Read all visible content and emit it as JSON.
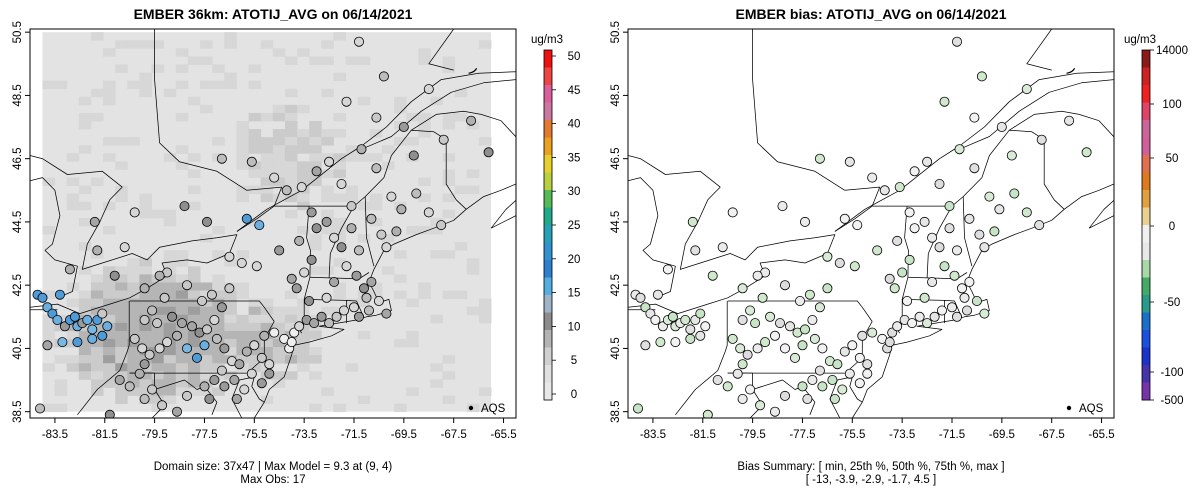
{
  "panels": [
    {
      "title": "EMBER 36km: ATOTIJ_AVG on 06/14/2021",
      "kind": "concentration",
      "legend_label": "AQS",
      "footer": [
        "Domain size: 37x47 | Max Model = 9.3 at (9, 4)",
        "Max Obs: 17"
      ],
      "colorbar": {
        "unit": "ug/m3",
        "ticks": [
          "50",
          "45",
          "40",
          "35",
          "30",
          "25",
          "20",
          "15",
          "10",
          "5",
          "0"
        ],
        "colors": [
          "#ee1111",
          "#ee4444",
          "#d9609a",
          "#cc77a0",
          "#e27a30",
          "#eaa020",
          "#e8cf30",
          "#b8d040",
          "#55bb55",
          "#22aa88",
          "#2aa0b8",
          "#3391d0",
          "#2f7fd0",
          "#55aee0",
          "#a0b4c8",
          "#8c8c8c",
          "#b4b4b4",
          "#d0d0d0",
          "#e0e0e0",
          "#e8e8e8"
        ]
      }
    },
    {
      "title": "EMBER bias: ATOTIJ_AVG on 06/14/2021",
      "kind": "bias",
      "legend_label": "AQS",
      "footer": [
        "Bias Summary: [ min, 25th %, 50th %, 75th %, max ]",
        "[ -13,   -3.9,   -2.9,   -1.7,   4.5 ]"
      ],
      "colorbar": {
        "unit": "ug/m3",
        "ticks": [
          "14000",
          "100",
          "50",
          "0",
          "-50",
          "-100",
          "-500"
        ],
        "colors": [
          "#8b1a1a",
          "#cc2222",
          "#ee2222",
          "#dd4466",
          "#cc6699",
          "#d0609a",
          "#e07050",
          "#dd7a20",
          "#e0a040",
          "#e8d090",
          "#f0f0f0",
          "#e8e8e8",
          "#a8d8a8",
          "#44aa66",
          "#2a9a8a",
          "#1a70c8",
          "#1a4fe0",
          "#1a33cc",
          "#4433aa",
          "#7733aa"
        ]
      }
    }
  ],
  "axes": {
    "x_ticks": [
      "-83.5",
      "-81.5",
      "-79.5",
      "-77.5",
      "-75.5",
      "-73.5",
      "-71.5",
      "-69.5",
      "-67.5",
      "-65.5"
    ],
    "y_ticks": [
      "38.5",
      "40.5",
      "42.5",
      "44.5",
      "46.5",
      "48.5",
      "50.5"
    ]
  },
  "map_data": {
    "lon_range": [
      -84.5,
      -65.0
    ],
    "lat_range": [
      38.3,
      50.6
    ],
    "domain_lon_range": [
      -84.0,
      -66.0
    ],
    "domain_lat_range": [
      38.5,
      50.5
    ],
    "sites": [
      [
        -84.1,
        38.6
      ],
      [
        -84.2,
        42.2
      ],
      [
        -84.0,
        42.1
      ],
      [
        -83.8,
        41.8
      ],
      [
        -83.6,
        41.6
      ],
      [
        -83.3,
        42.2
      ],
      [
        -83.4,
        41.4
      ],
      [
        -83.1,
        41.2
      ],
      [
        -82.9,
        41.4
      ],
      [
        -82.7,
        41.5
      ],
      [
        -82.6,
        41.2
      ],
      [
        -82.4,
        41.3
      ],
      [
        -82.2,
        41.4
      ],
      [
        -82.0,
        41.1
      ],
      [
        -81.8,
        41.4
      ],
      [
        -81.6,
        41.6
      ],
      [
        -81.4,
        41.2
      ],
      [
        -81.6,
        40.9
      ],
      [
        -82.0,
        40.8
      ],
      [
        -82.6,
        40.7
      ],
      [
        -83.2,
        40.7
      ],
      [
        -83.8,
        40.6
      ],
      [
        -81.3,
        38.4
      ],
      [
        -81.8,
        43.6
      ],
      [
        -80.7,
        43.7
      ],
      [
        -81.1,
        42.8
      ],
      [
        -81.9,
        44.5
      ],
      [
        -82.9,
        43.0
      ],
      [
        -79.0,
        42.9
      ],
      [
        -79.3,
        42.8
      ],
      [
        -79.9,
        42.4
      ],
      [
        -79.1,
        42.1
      ],
      [
        -79.6,
        41.7
      ],
      [
        -79.9,
        41.4
      ],
      [
        -79.4,
        41.3
      ],
      [
        -78.8,
        41.5
      ],
      [
        -78.4,
        41.3
      ],
      [
        -78.0,
        41.2
      ],
      [
        -77.7,
        41.0
      ],
      [
        -77.4,
        41.1
      ],
      [
        -77.1,
        41.4
      ],
      [
        -76.8,
        41.8
      ],
      [
        -77.6,
        42.0
      ],
      [
        -78.2,
        42.5
      ],
      [
        -77.2,
        42.2
      ],
      [
        -76.5,
        42.4
      ],
      [
        -80.3,
        40.8
      ],
      [
        -80.0,
        40.5
      ],
      [
        -79.7,
        40.3
      ],
      [
        -79.3,
        40.5
      ],
      [
        -79.0,
        40.7
      ],
      [
        -78.6,
        40.9
      ],
      [
        -78.2,
        40.5
      ],
      [
        -77.8,
        40.2
      ],
      [
        -77.5,
        40.6
      ],
      [
        -77.0,
        40.8
      ],
      [
        -76.7,
        40.5
      ],
      [
        -76.4,
        40.1
      ],
      [
        -76.1,
        40.0
      ],
      [
        -75.8,
        40.4
      ],
      [
        -75.5,
        40.6
      ],
      [
        -75.2,
        40.2
      ],
      [
        -74.9,
        40.0
      ],
      [
        -75.1,
        40.9
      ],
      [
        -74.7,
        41.0
      ],
      [
        -74.3,
        40.8
      ],
      [
        -74.1,
        40.5
      ],
      [
        -74.0,
        40.7
      ],
      [
        -73.9,
        41.0
      ],
      [
        -73.7,
        41.2
      ],
      [
        -73.4,
        41.4
      ],
      [
        -73.1,
        41.3
      ],
      [
        -72.8,
        41.5
      ],
      [
        -72.5,
        41.3
      ],
      [
        -72.2,
        41.5
      ],
      [
        -71.9,
        41.7
      ],
      [
        -71.5,
        41.8
      ],
      [
        -71.3,
        41.5
      ],
      [
        -80.9,
        39.5
      ],
      [
        -80.5,
        39.3
      ],
      [
        -80.1,
        39.7
      ],
      [
        -79.6,
        39.2
      ],
      [
        -79.9,
        38.9
      ],
      [
        -79.2,
        38.7
      ],
      [
        -78.6,
        38.5
      ],
      [
        -78.2,
        39.0
      ],
      [
        -77.5,
        39.3
      ],
      [
        -77.1,
        39.5
      ],
      [
        -76.7,
        39.3
      ],
      [
        -76.3,
        39.5
      ],
      [
        -75.9,
        39.2
      ],
      [
        -75.6,
        39.7
      ],
      [
        -75.2,
        39.4
      ],
      [
        -74.9,
        39.7
      ],
      [
        -77.3,
        38.9
      ],
      [
        -76.8,
        39.8
      ],
      [
        -76.2,
        38.9
      ],
      [
        -79.9,
        40.0
      ],
      [
        -76.5,
        43.4
      ],
      [
        -76.0,
        43.2
      ],
      [
        -75.4,
        43.1
      ],
      [
        -74.5,
        43.6
      ],
      [
        -74.0,
        42.7
      ],
      [
        -73.8,
        42.4
      ],
      [
        -73.5,
        42.9
      ],
      [
        -73.2,
        43.3
      ],
      [
        -73.7,
        43.9
      ],
      [
        -73.0,
        44.3
      ],
      [
        -72.6,
        44.5
      ],
      [
        -73.2,
        44.8
      ],
      [
        -72.3,
        44.0
      ],
      [
        -72.0,
        43.7
      ],
      [
        -71.6,
        44.3
      ],
      [
        -71.3,
        43.6
      ],
      [
        -71.8,
        43.1
      ],
      [
        -71.4,
        42.8
      ],
      [
        -71.1,
        42.4
      ],
      [
        -70.8,
        42.6
      ],
      [
        -70.5,
        42.0
      ],
      [
        -70.9,
        41.7
      ],
      [
        -70.2,
        41.6
      ],
      [
        -71.0,
        42.1
      ],
      [
        -72.6,
        42.1
      ],
      [
        -72.3,
        42.6
      ],
      [
        -73.3,
        42.0
      ],
      [
        -75.3,
        44.4
      ],
      [
        -75.8,
        44.6
      ],
      [
        -77.4,
        44.5
      ],
      [
        -78.3,
        45.0
      ],
      [
        -80.3,
        44.8
      ],
      [
        -75.6,
        46.4
      ],
      [
        -74.7,
        45.9
      ],
      [
        -74.2,
        45.5
      ],
      [
        -73.6,
        45.6
      ],
      [
        -73.0,
        46.1
      ],
      [
        -72.5,
        46.4
      ],
      [
        -72.0,
        45.7
      ],
      [
        -71.2,
        46.8
      ],
      [
        -70.6,
        46.2
      ],
      [
        -70.0,
        45.3
      ],
      [
        -69.6,
        44.9
      ],
      [
        -69.0,
        45.4
      ],
      [
        -68.5,
        44.8
      ],
      [
        -68.0,
        44.4
      ],
      [
        -70.4,
        44.1
      ],
      [
        -70.2,
        43.7
      ],
      [
        -70.8,
        44.6
      ],
      [
        -69.8,
        44.2
      ],
      [
        -71.6,
        45.0
      ],
      [
        -76.8,
        46.5
      ],
      [
        -69.5,
        47.5
      ],
      [
        -67.9,
        47.1
      ],
      [
        -69.1,
        46.6
      ],
      [
        -70.6,
        47.8
      ],
      [
        -71.8,
        48.3
      ],
      [
        -71.3,
        50.2
      ],
      [
        -70.3,
        49.1
      ],
      [
        -68.5,
        48.7
      ],
      [
        -66.8,
        47.7
      ],
      [
        -66.1,
        46.7
      ]
    ]
  }
}
